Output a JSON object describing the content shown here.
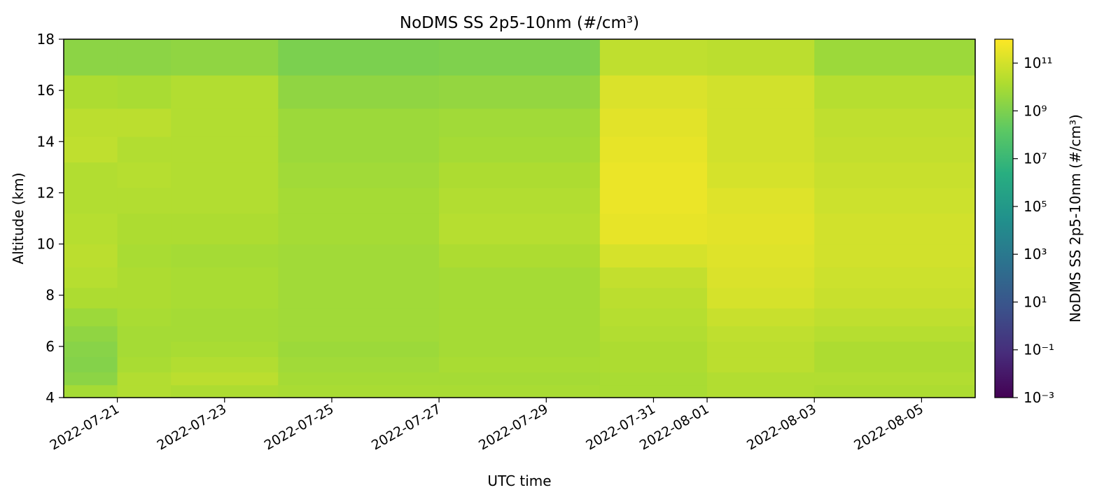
{
  "chart_data": {
    "type": "heatmap",
    "title": "NoDMS SS 2p5-10nm (#/cm³)",
    "xlabel": "UTC time",
    "ylabel": "Altitude (km)",
    "colorbar_label": "NoDMS SS 2p5-10nm (#/cm³)",
    "colormap": "viridis",
    "x_range": [
      "2022-07-20",
      "2022-08-06"
    ],
    "x_ticks": [
      "2022-07-21",
      "2022-07-23",
      "2022-07-25",
      "2022-07-27",
      "2022-07-29",
      "2022-07-31",
      "2022-08-01",
      "2022-08-03",
      "2022-08-05"
    ],
    "y_range": [
      4,
      18
    ],
    "y_ticks": [
      4,
      6,
      8,
      10,
      12,
      14,
      16,
      18
    ],
    "color_scale": "log",
    "color_range": [
      0.001,
      1000000000000
    ],
    "colorbar_ticks": [
      "10⁻³",
      "10⁻¹",
      "10¹",
      "10³",
      "10⁵",
      "10⁷",
      "10⁹",
      "10¹¹"
    ],
    "altitude_levels_km": [
      4.0,
      4.5,
      5.0,
      5.6,
      6.2,
      6.8,
      7.5,
      8.3,
      9.1,
      10.0,
      11.2,
      12.2,
      13.2,
      14.2,
      15.3,
      16.6,
      18.0
    ],
    "time_segments": [
      {
        "start": "2022-07-20",
        "end": "2022-07-21",
        "log_values": [
          10.0,
          9.4,
          9.2,
          9.3,
          9.5,
          9.8,
          10.2,
          10.4,
          10.5,
          10.4,
          10.3,
          10.3,
          10.6,
          10.5,
          10.2,
          9.4
        ]
      },
      {
        "start": "2022-07-21",
        "end": "2022-07-22",
        "log_values": [
          10.3,
          10.3,
          10.1,
          10.0,
          10.0,
          10.1,
          10.2,
          10.2,
          10.1,
          10.2,
          10.3,
          10.4,
          10.3,
          10.5,
          10.1,
          9.4
        ]
      },
      {
        "start": "2022-07-22",
        "end": "2022-07-24",
        "log_values": [
          10.2,
          10.5,
          10.3,
          10.1,
          10.0,
          10.0,
          10.1,
          10.1,
          10.0,
          10.2,
          10.3,
          10.3,
          10.3,
          10.3,
          10.3,
          9.5
        ]
      },
      {
        "start": "2022-07-24",
        "end": "2022-07-27",
        "log_values": [
          10.1,
          10.0,
          9.9,
          9.8,
          9.9,
          9.9,
          9.9,
          9.9,
          9.9,
          10.0,
          10.0,
          9.9,
          9.8,
          9.8,
          9.5,
          9.0
        ]
      },
      {
        "start": "2022-07-27",
        "end": "2022-07-30",
        "log_values": [
          10.1,
          10.0,
          10.1,
          10.0,
          10.0,
          10.0,
          10.0,
          10.0,
          10.2,
          10.4,
          10.3,
          10.2,
          10.0,
          9.9,
          9.6,
          9.1
        ]
      },
      {
        "start": "2022-07-30",
        "end": "2022-08-01",
        "log_values": [
          10.1,
          10.1,
          10.2,
          10.2,
          10.3,
          10.4,
          10.5,
          10.7,
          11.1,
          11.5,
          11.6,
          11.6,
          11.5,
          11.4,
          11.2,
          10.6
        ]
      },
      {
        "start": "2022-08-01",
        "end": "2022-08-03",
        "log_values": [
          10.3,
          10.3,
          10.5,
          10.5,
          10.6,
          10.8,
          11.1,
          11.2,
          11.3,
          11.4,
          11.3,
          11.1,
          11.0,
          11.0,
          11.0,
          10.5
        ]
      },
      {
        "start": "2022-08-03",
        "end": "2022-08-06",
        "log_values": [
          10.2,
          10.3,
          10.2,
          10.2,
          10.4,
          10.6,
          10.8,
          10.9,
          11.0,
          11.0,
          10.9,
          10.8,
          10.7,
          10.6,
          10.4,
          9.8
        ]
      }
    ]
  }
}
